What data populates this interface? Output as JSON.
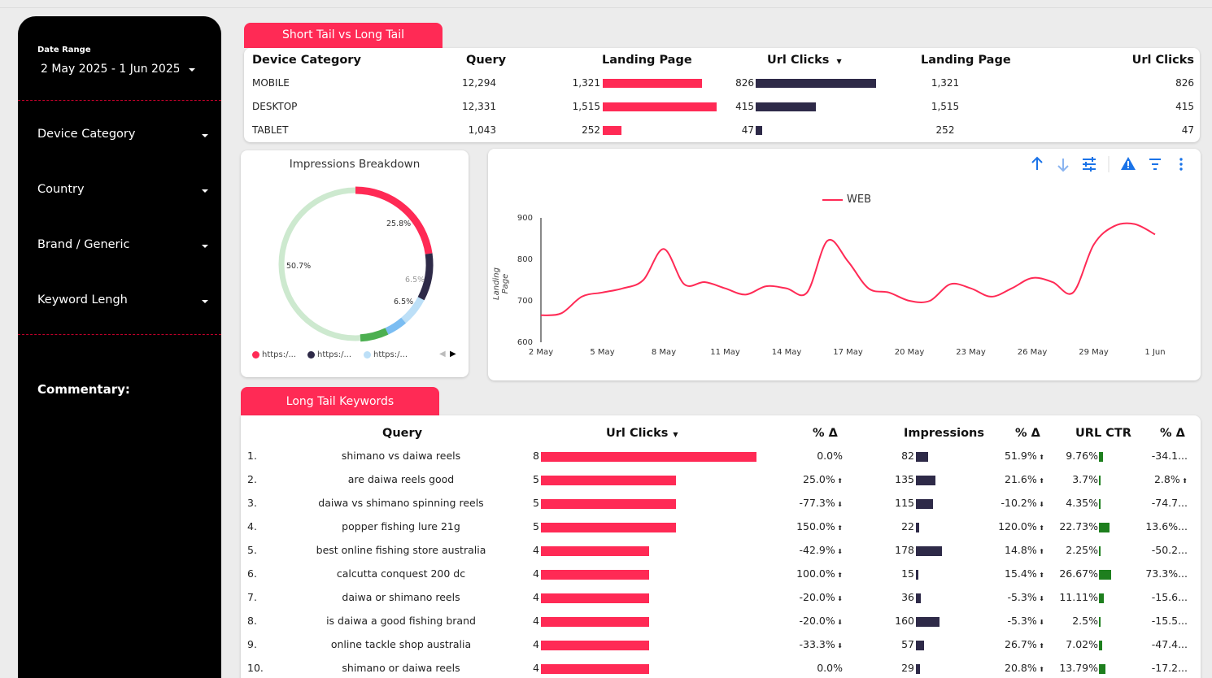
{
  "sidebar": {
    "date_range_label": "Date Range",
    "date_range_value": "2 May 2025 - 1 Jun 2025",
    "filters": [
      "Device Category",
      "Country",
      "Brand / Generic",
      "Keyword Lengh"
    ],
    "commentary_label": "Commentary:"
  },
  "short_tail": {
    "tab_label": "Short Tail vs Long Tail",
    "headers": [
      "Device Category",
      "Query",
      "Landing Page",
      "Url Clicks",
      "Landing Page",
      "Url Clicks"
    ],
    "rows": [
      {
        "device": "MOBILE",
        "query": "12,294",
        "landing": "1,321",
        "landing_v": 1321,
        "clicks": "826",
        "clicks_v": 826,
        "landing2": "1,321",
        "clicks2": "826"
      },
      {
        "device": "DESKTOP",
        "query": "12,331",
        "landing": "1,515",
        "landing_v": 1515,
        "clicks": "415",
        "clicks_v": 415,
        "landing2": "1,515",
        "clicks2": "415"
      },
      {
        "device": "TABLET",
        "query": "1,043",
        "landing": "252",
        "landing_v": 252,
        "clicks": "47",
        "clicks_v": 47,
        "landing2": "252",
        "clicks2": "47"
      }
    ]
  },
  "impressions": {
    "title": "Impressions Breakdown",
    "labels": [
      "25.8%",
      "6.5%",
      "6.5%",
      "50.7%"
    ],
    "legend": [
      "https:/...",
      "https:/...",
      "https:/..."
    ],
    "colors": [
      "#ff2a55",
      "#2e2a48",
      "#bcdff7"
    ]
  },
  "chart_data": {
    "type": "line",
    "series": [
      {
        "name": "WEB",
        "values": [
          665,
          670,
          710,
          720,
          730,
          750,
          825,
          740,
          745,
          730,
          715,
          735,
          730,
          720,
          845,
          795,
          730,
          720,
          700,
          700,
          740,
          730,
          710,
          730,
          755,
          745,
          720,
          835,
          880,
          885,
          860
        ]
      }
    ],
    "x_ticks": [
      "2 May",
      "5 May",
      "8 May",
      "11 May",
      "14 May",
      "17 May",
      "20 May",
      "23 May",
      "26 May",
      "29 May",
      "1 Jun"
    ],
    "y_ticks": [
      "600",
      "700",
      "800",
      "900"
    ],
    "ylabel": "Landing Page",
    "ylim": [
      600,
      900
    ],
    "color": "#ff2a55"
  },
  "long_tail": {
    "tab_label": "Long Tail Keywords",
    "headers": {
      "query": "Query",
      "clicks": "Url Clicks",
      "pct1": "% Δ",
      "impr": "Impressions",
      "pct2": "% Δ",
      "ctr": "URL CTR",
      "pct3": "% Δ"
    },
    "rows": [
      {
        "n": "1.",
        "q": "shimano vs daiwa reels",
        "c": "8",
        "cv": 8,
        "p1": "0.0%",
        "p1d": "",
        "i": "82",
        "iv": 82,
        "p2": "51.9%",
        "p2d": "up",
        "ctr": "9.76%",
        "ctrv": 9.76,
        "p3": "-34.1...",
        "p3d": ""
      },
      {
        "n": "2.",
        "q": "are daiwa reels good",
        "c": "5",
        "cv": 5,
        "p1": "25.0%",
        "p1d": "up",
        "i": "135",
        "iv": 135,
        "p2": "21.6%",
        "p2d": "up",
        "ctr": "3.7%",
        "ctrv": 3.7,
        "p3": "2.8%",
        "p3d": "up"
      },
      {
        "n": "3.",
        "q": "daiwa vs shimano spinning reels",
        "c": "5",
        "cv": 5,
        "p1": "-77.3%",
        "p1d": "down",
        "i": "115",
        "iv": 115,
        "p2": "-10.2%",
        "p2d": "down",
        "ctr": "4.35%",
        "ctrv": 4.35,
        "p3": "-74.7...",
        "p3d": ""
      },
      {
        "n": "4.",
        "q": "popper fishing lure 21g",
        "c": "5",
        "cv": 5,
        "p1": "150.0%",
        "p1d": "up",
        "i": "22",
        "iv": 22,
        "p2": "120.0%",
        "p2d": "up",
        "ctr": "22.73%",
        "ctrv": 22.73,
        "p3": "13.6%...",
        "p3d": ""
      },
      {
        "n": "5.",
        "q": "best online fishing store australia",
        "c": "4",
        "cv": 4,
        "p1": "-42.9%",
        "p1d": "down",
        "i": "178",
        "iv": 178,
        "p2": "14.8%",
        "p2d": "up",
        "ctr": "2.25%",
        "ctrv": 2.25,
        "p3": "-50.2...",
        "p3d": ""
      },
      {
        "n": "6.",
        "q": "calcutta conquest 200 dc",
        "c": "4",
        "cv": 4,
        "p1": "100.0%",
        "p1d": "up",
        "i": "15",
        "iv": 15,
        "p2": "15.4%",
        "p2d": "up",
        "ctr": "26.67%",
        "ctrv": 26.67,
        "p3": "73.3%...",
        "p3d": ""
      },
      {
        "n": "7.",
        "q": "daiwa or shimano reels",
        "c": "4",
        "cv": 4,
        "p1": "-20.0%",
        "p1d": "down",
        "i": "36",
        "iv": 36,
        "p2": "-5.3%",
        "p2d": "down",
        "ctr": "11.11%",
        "ctrv": 11.11,
        "p3": "-15.6...",
        "p3d": ""
      },
      {
        "n": "8.",
        "q": "is daiwa a good fishing brand",
        "c": "4",
        "cv": 4,
        "p1": "-20.0%",
        "p1d": "down",
        "i": "160",
        "iv": 160,
        "p2": "-5.3%",
        "p2d": "down",
        "ctr": "2.5%",
        "ctrv": 2.5,
        "p3": "-15.5...",
        "p3d": ""
      },
      {
        "n": "9.",
        "q": "online tackle shop australia",
        "c": "4",
        "cv": 4,
        "p1": "-33.3%",
        "p1d": "down",
        "i": "57",
        "iv": 57,
        "p2": "26.7%",
        "p2d": "up",
        "ctr": "7.02%",
        "ctrv": 7.02,
        "p3": "-47.4...",
        "p3d": ""
      },
      {
        "n": "10.",
        "q": "shimano or daiwa reels",
        "c": "4",
        "cv": 4,
        "p1": "0.0%",
        "p1d": "",
        "i": "29",
        "iv": 29,
        "p2": "20.8%",
        "p2d": "up",
        "ctr": "13.79%",
        "ctrv": 13.79,
        "p3": "-17.2...",
        "p3d": ""
      }
    ]
  }
}
